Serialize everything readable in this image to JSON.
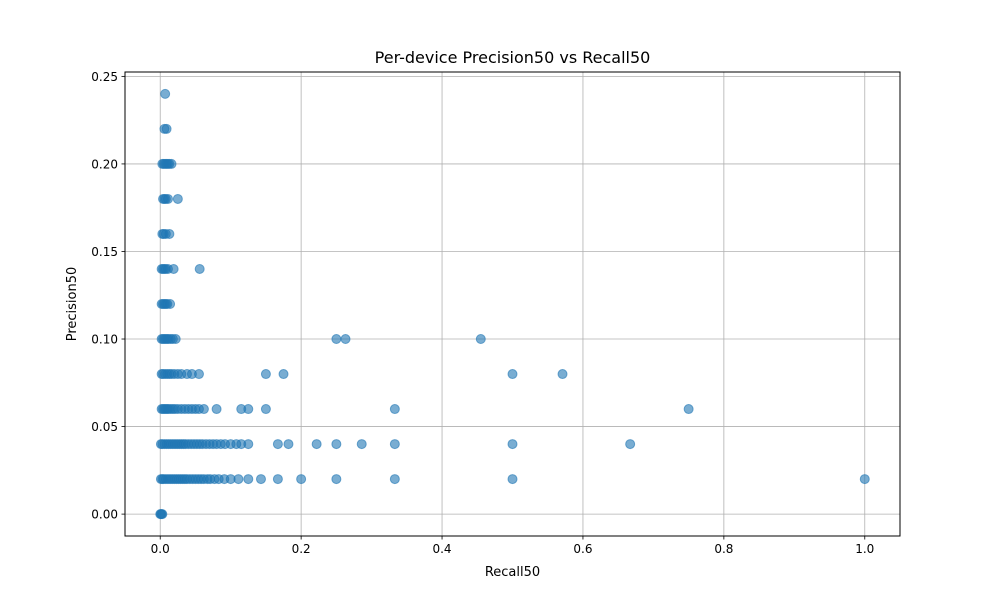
{
  "chart_data": {
    "type": "scatter",
    "title": "Per-device Precision50 vs Recall50",
    "xlabel": "Recall50",
    "ylabel": "Precision50",
    "xlim": [
      -0.05,
      1.05
    ],
    "ylim": [
      -0.0125,
      0.2525
    ],
    "xticks": [
      0.0,
      0.2,
      0.4,
      0.6,
      0.8,
      1.0
    ],
    "xtick_labels": [
      "0.0",
      "0.2",
      "0.4",
      "0.6",
      "0.8",
      "1.0"
    ],
    "yticks": [
      0.0,
      0.05,
      0.1,
      0.15,
      0.2,
      0.25
    ],
    "ytick_labels": [
      "0.00",
      "0.05",
      "0.10",
      "0.15",
      "0.20",
      "0.25"
    ],
    "grid": true,
    "legend": "none",
    "marker_color": "#1f77b4",
    "marker_alpha": 0.6,
    "points": [
      [
        0.0,
        0.0
      ],
      [
        0.001,
        0.0
      ],
      [
        0.002,
        0.0
      ],
      [
        0.003,
        0.0
      ],
      [
        0.007,
        0.24
      ],
      [
        0.006,
        0.22
      ],
      [
        0.009,
        0.22
      ],
      [
        0.003,
        0.2
      ],
      [
        0.005,
        0.2
      ],
      [
        0.007,
        0.2
      ],
      [
        0.009,
        0.2
      ],
      [
        0.011,
        0.2
      ],
      [
        0.013,
        0.2
      ],
      [
        0.016,
        0.2
      ],
      [
        0.004,
        0.18
      ],
      [
        0.006,
        0.18
      ],
      [
        0.008,
        0.18
      ],
      [
        0.011,
        0.18
      ],
      [
        0.025,
        0.18
      ],
      [
        0.003,
        0.16
      ],
      [
        0.005,
        0.16
      ],
      [
        0.008,
        0.16
      ],
      [
        0.013,
        0.16
      ],
      [
        0.002,
        0.14
      ],
      [
        0.004,
        0.14
      ],
      [
        0.006,
        0.14
      ],
      [
        0.008,
        0.14
      ],
      [
        0.011,
        0.14
      ],
      [
        0.019,
        0.14
      ],
      [
        0.056,
        0.14
      ],
      [
        0.002,
        0.12
      ],
      [
        0.004,
        0.12
      ],
      [
        0.006,
        0.12
      ],
      [
        0.008,
        0.12
      ],
      [
        0.01,
        0.12
      ],
      [
        0.014,
        0.12
      ],
      [
        0.002,
        0.1
      ],
      [
        0.004,
        0.1
      ],
      [
        0.006,
        0.1
      ],
      [
        0.008,
        0.1
      ],
      [
        0.01,
        0.1
      ],
      [
        0.012,
        0.1
      ],
      [
        0.015,
        0.1
      ],
      [
        0.018,
        0.1
      ],
      [
        0.022,
        0.1
      ],
      [
        0.25,
        0.1
      ],
      [
        0.263,
        0.1
      ],
      [
        0.455,
        0.1
      ],
      [
        0.002,
        0.08
      ],
      [
        0.004,
        0.08
      ],
      [
        0.007,
        0.08
      ],
      [
        0.01,
        0.08
      ],
      [
        0.013,
        0.08
      ],
      [
        0.016,
        0.08
      ],
      [
        0.02,
        0.08
      ],
      [
        0.025,
        0.08
      ],
      [
        0.03,
        0.08
      ],
      [
        0.038,
        0.08
      ],
      [
        0.045,
        0.08
      ],
      [
        0.055,
        0.08
      ],
      [
        0.15,
        0.08
      ],
      [
        0.175,
        0.08
      ],
      [
        0.5,
        0.08
      ],
      [
        0.571,
        0.08
      ],
      [
        0.002,
        0.06
      ],
      [
        0.004,
        0.06
      ],
      [
        0.006,
        0.06
      ],
      [
        0.008,
        0.06
      ],
      [
        0.01,
        0.06
      ],
      [
        0.012,
        0.06
      ],
      [
        0.015,
        0.06
      ],
      [
        0.018,
        0.06
      ],
      [
        0.021,
        0.06
      ],
      [
        0.025,
        0.06
      ],
      [
        0.03,
        0.06
      ],
      [
        0.035,
        0.06
      ],
      [
        0.04,
        0.06
      ],
      [
        0.045,
        0.06
      ],
      [
        0.05,
        0.06
      ],
      [
        0.055,
        0.06
      ],
      [
        0.062,
        0.06
      ],
      [
        0.08,
        0.06
      ],
      [
        0.115,
        0.06
      ],
      [
        0.125,
        0.06
      ],
      [
        0.15,
        0.06
      ],
      [
        0.333,
        0.06
      ],
      [
        0.75,
        0.06
      ],
      [
        0.001,
        0.04
      ],
      [
        0.003,
        0.04
      ],
      [
        0.006,
        0.04
      ],
      [
        0.009,
        0.04
      ],
      [
        0.012,
        0.04
      ],
      [
        0.015,
        0.04
      ],
      [
        0.018,
        0.04
      ],
      [
        0.021,
        0.04
      ],
      [
        0.024,
        0.04
      ],
      [
        0.027,
        0.04
      ],
      [
        0.03,
        0.04
      ],
      [
        0.033,
        0.04
      ],
      [
        0.036,
        0.04
      ],
      [
        0.04,
        0.04
      ],
      [
        0.044,
        0.04
      ],
      [
        0.048,
        0.04
      ],
      [
        0.052,
        0.04
      ],
      [
        0.056,
        0.04
      ],
      [
        0.06,
        0.04
      ],
      [
        0.065,
        0.04
      ],
      [
        0.07,
        0.04
      ],
      [
        0.075,
        0.04
      ],
      [
        0.08,
        0.04
      ],
      [
        0.086,
        0.04
      ],
      [
        0.092,
        0.04
      ],
      [
        0.1,
        0.04
      ],
      [
        0.108,
        0.04
      ],
      [
        0.115,
        0.04
      ],
      [
        0.125,
        0.04
      ],
      [
        0.167,
        0.04
      ],
      [
        0.182,
        0.04
      ],
      [
        0.222,
        0.04
      ],
      [
        0.25,
        0.04
      ],
      [
        0.286,
        0.04
      ],
      [
        0.333,
        0.04
      ],
      [
        0.5,
        0.04
      ],
      [
        0.667,
        0.04
      ],
      [
        0.001,
        0.02
      ],
      [
        0.003,
        0.02
      ],
      [
        0.005,
        0.02
      ],
      [
        0.008,
        0.02
      ],
      [
        0.011,
        0.02
      ],
      [
        0.014,
        0.02
      ],
      [
        0.017,
        0.02
      ],
      [
        0.02,
        0.02
      ],
      [
        0.023,
        0.02
      ],
      [
        0.026,
        0.02
      ],
      [
        0.029,
        0.02
      ],
      [
        0.032,
        0.02
      ],
      [
        0.035,
        0.02
      ],
      [
        0.038,
        0.02
      ],
      [
        0.042,
        0.02
      ],
      [
        0.046,
        0.02
      ],
      [
        0.05,
        0.02
      ],
      [
        0.054,
        0.02
      ],
      [
        0.058,
        0.02
      ],
      [
        0.062,
        0.02
      ],
      [
        0.067,
        0.02
      ],
      [
        0.071,
        0.02
      ],
      [
        0.077,
        0.02
      ],
      [
        0.083,
        0.02
      ],
      [
        0.091,
        0.02
      ],
      [
        0.1,
        0.02
      ],
      [
        0.111,
        0.02
      ],
      [
        0.125,
        0.02
      ],
      [
        0.143,
        0.02
      ],
      [
        0.167,
        0.02
      ],
      [
        0.2,
        0.02
      ],
      [
        0.25,
        0.02
      ],
      [
        0.333,
        0.02
      ],
      [
        0.5,
        0.02
      ],
      [
        1.0,
        0.02
      ]
    ]
  }
}
